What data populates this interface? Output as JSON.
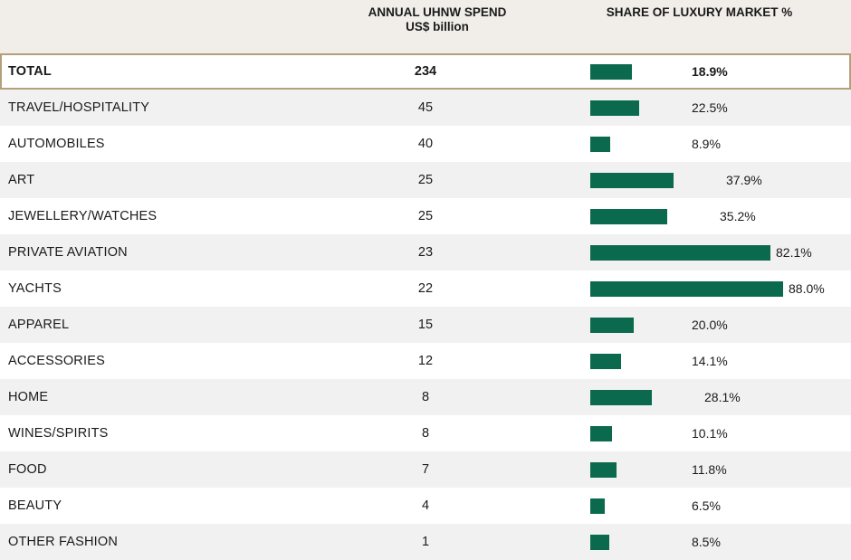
{
  "header": {
    "spend_line1": "ANNUAL UHNW SPEND",
    "spend_line2": "US$ billion",
    "share_title": "SHARE OF LUXURY MARKET %"
  },
  "chart_data": {
    "type": "table",
    "columns": [
      "",
      "ANNUAL UHNW SPEND US$ billion",
      "SHARE OF LUXURY MARKET %"
    ],
    "bar_color": "#0b6a4e",
    "total_border_color": "#b49f7b",
    "header_background": "#f1eeea",
    "rows": [
      {
        "label": "TOTAL",
        "spend": "234",
        "share": 18.9,
        "share_label": "18.9%",
        "total": true
      },
      {
        "label": "TRAVEL/HOSPITALITY",
        "spend": "45",
        "share": 22.5,
        "share_label": "22.5%"
      },
      {
        "label": "AUTOMOBILES",
        "spend": "40",
        "share": 8.9,
        "share_label": "8.9%"
      },
      {
        "label": "ART",
        "spend": "25",
        "share": 37.9,
        "share_label": "37.9%"
      },
      {
        "label": "JEWELLERY/WATCHES",
        "spend": "25",
        "share": 35.2,
        "share_label": "35.2%"
      },
      {
        "label": "PRIVATE AVIATION",
        "spend": "23",
        "share": 82.1,
        "share_label": "82.1%"
      },
      {
        "label": "YACHTS",
        "spend": "22",
        "share": 88.0,
        "share_label": "88.0%"
      },
      {
        "label": "APPAREL",
        "spend": "15",
        "share": 20.0,
        "share_label": "20.0%"
      },
      {
        "label": "ACCESSORIES",
        "spend": "12",
        "share": 14.1,
        "share_label": "14.1%"
      },
      {
        "label": "HOME",
        "spend": "8",
        "share": 28.1,
        "share_label": "28.1%"
      },
      {
        "label": "WINES/SPIRITS",
        "spend": "8",
        "share": 10.1,
        "share_label": "10.1%"
      },
      {
        "label": "FOOD",
        "spend": "7",
        "share": 11.8,
        "share_label": "11.8%"
      },
      {
        "label": "BEAUTY",
        "spend": "4",
        "share": 6.5,
        "share_label": "6.5%"
      },
      {
        "label": "OTHER FASHION",
        "spend": "1",
        "share": 8.5,
        "share_label": "8.5%"
      }
    ]
  }
}
